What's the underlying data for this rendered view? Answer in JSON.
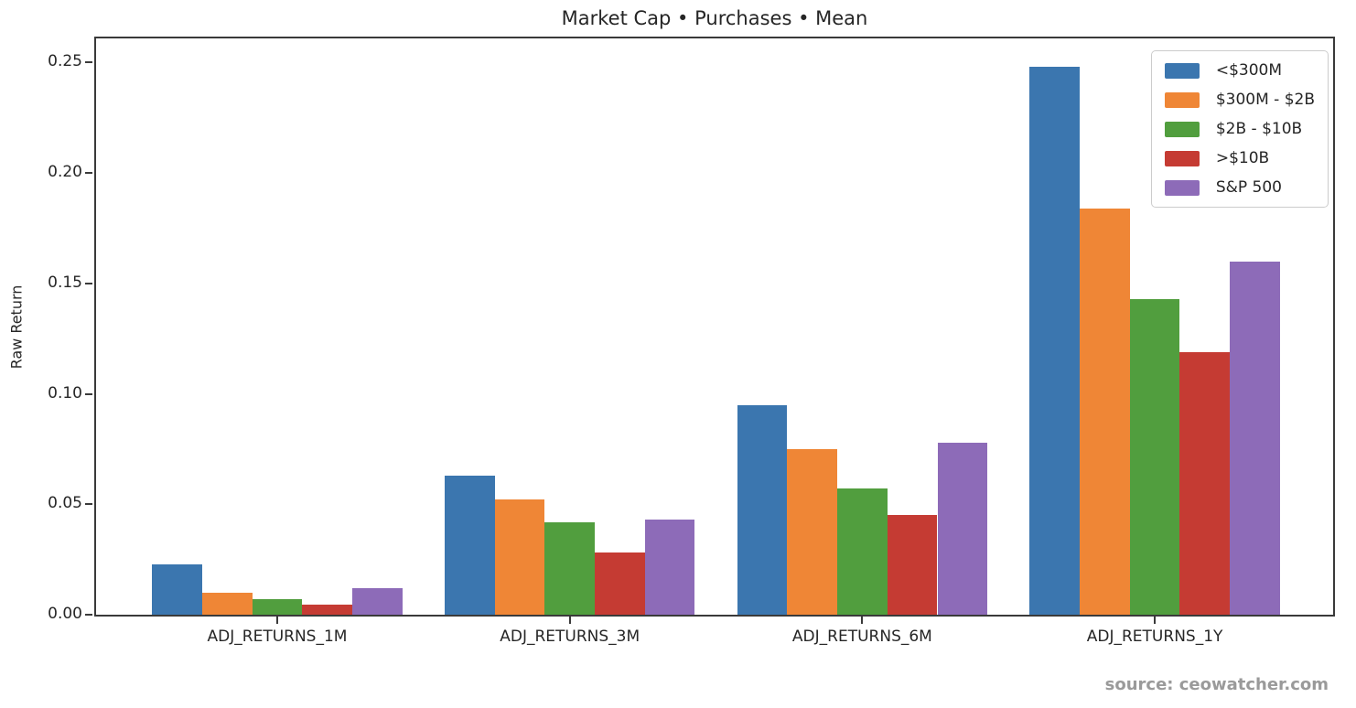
{
  "source_credit": "source: ceowatcher.com",
  "chart_data": {
    "type": "bar",
    "title": "Market Cap • Purchases • Mean",
    "xlabel": "",
    "ylabel": "Raw Return",
    "categories": [
      "ADJ_RETURNS_1M",
      "ADJ_RETURNS_3M",
      "ADJ_RETURNS_6M",
      "ADJ_RETURNS_1Y"
    ],
    "series": [
      {
        "name": "<$300M",
        "color": "#3B76AF",
        "values": [
          0.023,
          0.063,
          0.095,
          0.248
        ]
      },
      {
        "name": "$300M - $2B",
        "color": "#EF8636",
        "values": [
          0.01,
          0.052,
          0.075,
          0.184
        ]
      },
      {
        "name": "$2B - $10B",
        "color": "#519E3E",
        "values": [
          0.007,
          0.042,
          0.057,
          0.143
        ]
      },
      {
        "name": ">$10B",
        "color": "#C53B33",
        "values": [
          0.0045,
          0.028,
          0.045,
          0.119
        ]
      },
      {
        "name": "S&P 500",
        "color": "#8D6BB8",
        "values": [
          0.012,
          0.043,
          0.078,
          0.16
        ]
      }
    ],
    "yticks": [
      0.0,
      0.05,
      0.1,
      0.15,
      0.2,
      0.25
    ],
    "ytick_labels": [
      "0.00",
      "0.05",
      "0.10",
      "0.15",
      "0.20",
      "0.25"
    ],
    "ylim": [
      0,
      0.2609
    ],
    "grid": false,
    "legend_position": "upper right"
  }
}
